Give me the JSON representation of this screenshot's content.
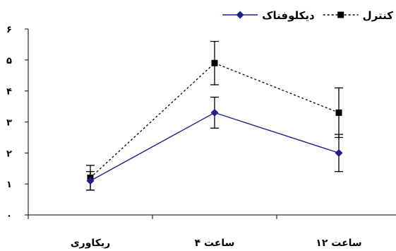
{
  "chart_data": {
    "type": "line",
    "categories": [
      "ریکاوری",
      "ساعت ۴",
      "ساعت ۱۲"
    ],
    "y_tick_labels": [
      "۰",
      "۱",
      "۲",
      "۳",
      "۴",
      "۵",
      "۶"
    ],
    "ylim": [
      0,
      6
    ],
    "y_ticks": [
      0,
      1,
      2,
      3,
      4,
      5,
      6
    ],
    "grid": false,
    "legend_position": "top-right",
    "series": [
      {
        "name": "کنترل",
        "values": [
          1.2,
          4.9,
          3.3
        ],
        "errors": [
          0.4,
          0.7,
          0.8
        ],
        "color": "#000000",
        "line_style": "dotted",
        "marker": "square"
      },
      {
        "name": "دیکلوفناک",
        "values": [
          1.1,
          3.3,
          2.0
        ],
        "errors": [
          0.3,
          0.5,
          0.6
        ],
        "color": "#1f1f8f",
        "line_style": "solid",
        "marker": "diamond"
      }
    ]
  }
}
